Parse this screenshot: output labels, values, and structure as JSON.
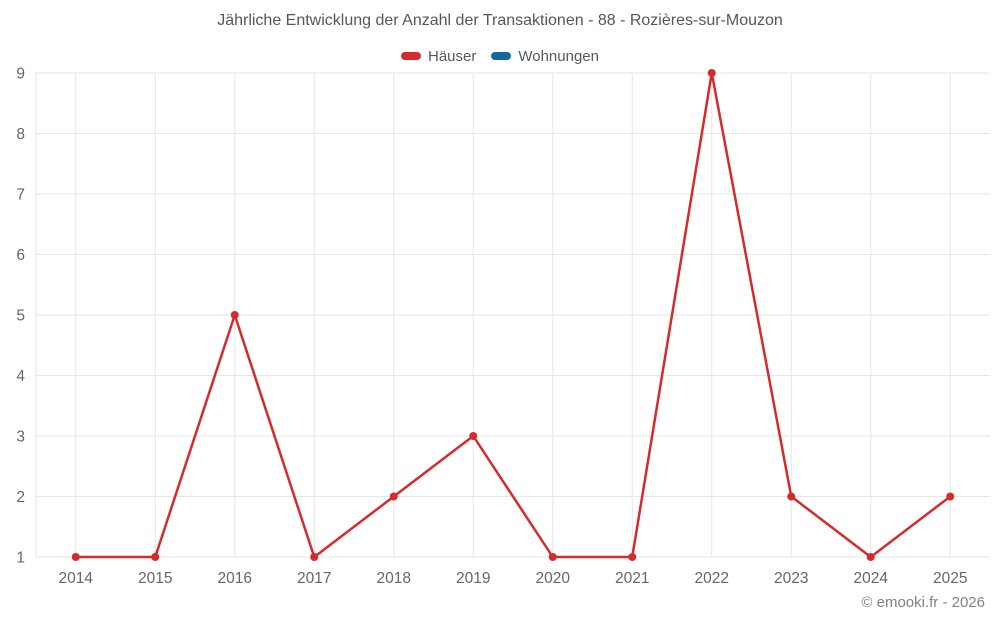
{
  "chart": {
    "title": "Jährliche Entwicklung der Anzahl der Transaktionen - 88 - Rozières-sur-Mouzon",
    "footer": "© emooki.fr - 2026"
  },
  "chart_data": {
    "type": "line",
    "title": "Jährliche Entwicklung der Anzahl der Transaktionen - 88 - Rozières-sur-Mouzon",
    "categories": [
      "2014",
      "2015",
      "2016",
      "2017",
      "2018",
      "2019",
      "2020",
      "2021",
      "2022",
      "2023",
      "2024",
      "2025"
    ],
    "series": [
      {
        "name": "Häuser",
        "color": "#d42b2e",
        "values": [
          1,
          1,
          5,
          1,
          2,
          3,
          1,
          1,
          9,
          2,
          1,
          2
        ]
      },
      {
        "name": "Wohnungen",
        "color": "#1368a0",
        "values": []
      }
    ],
    "xlabel": "",
    "ylabel": "",
    "yticks": [
      1,
      2,
      3,
      4,
      5,
      6,
      7,
      8,
      9
    ],
    "ylim": [
      1,
      9
    ],
    "grid": true,
    "grid_color": "#e6e6e6",
    "tick_color": "#666666",
    "legend_position": "top"
  }
}
